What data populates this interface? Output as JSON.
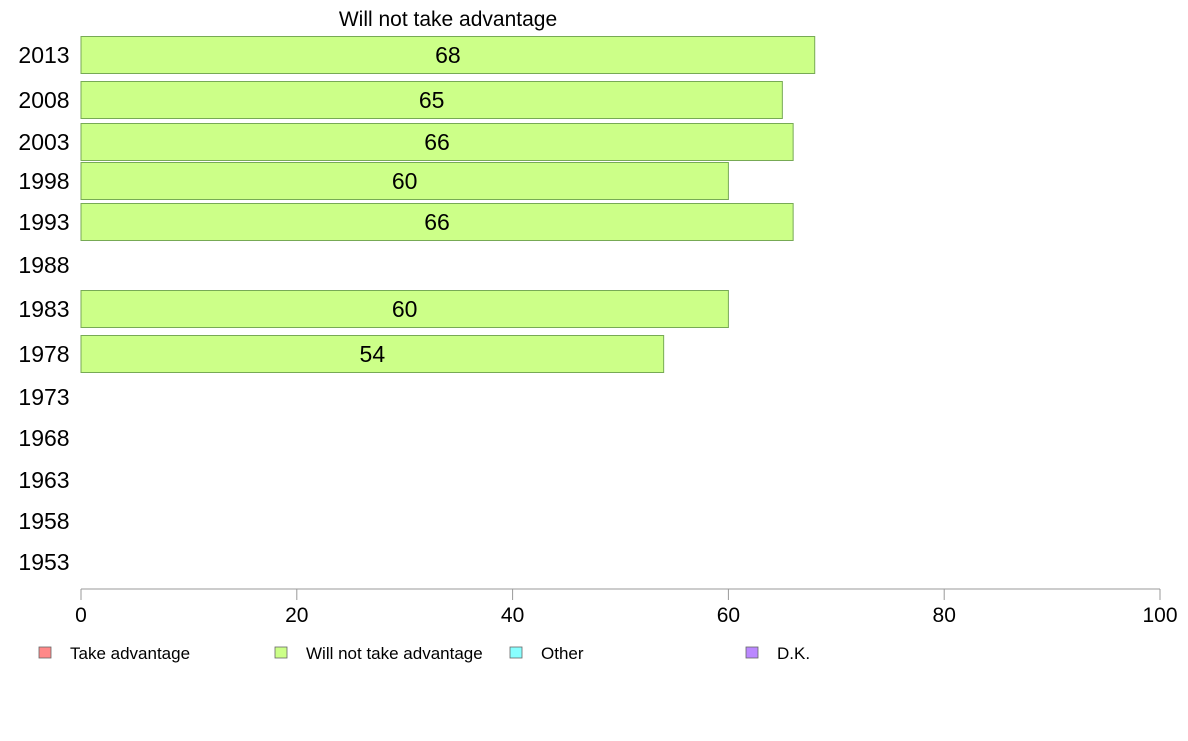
{
  "chart_data": {
    "type": "bar",
    "orientation": "horizontal",
    "title": "Will not take advantage",
    "categories": [
      "2013",
      "2008",
      "2003",
      "1998",
      "1993",
      "1988",
      "1983",
      "1978",
      "1973",
      "1968",
      "1963",
      "1958",
      "1953"
    ],
    "series": [
      {
        "name": "Will not take advantage",
        "color": "#ccff88",
        "values": [
          68,
          65,
          66,
          60,
          66,
          null,
          60,
          54,
          null,
          null,
          null,
          null,
          null
        ]
      }
    ],
    "xlim": [
      0,
      100
    ],
    "xticks": [
      "0",
      "20",
      "40",
      "60",
      "80",
      "100"
    ],
    "grid": false,
    "legend": {
      "position": "bottom",
      "items": [
        {
          "label": "Take advantage",
          "color": "#ff8888"
        },
        {
          "label": "Will not take advantage",
          "color": "#ccff88"
        },
        {
          "label": "Other",
          "color": "#88ffff"
        },
        {
          "label": "D.K.",
          "color": "#bb88ff"
        }
      ]
    }
  }
}
